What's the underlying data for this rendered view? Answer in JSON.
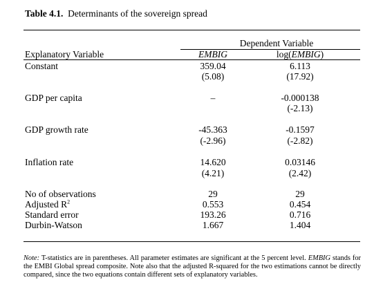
{
  "table": {
    "number_label": "Table 4.1.",
    "caption": "Determinants of the sovereign spread",
    "dependent_header": "Dependent Variable",
    "explanatory_header": "Explanatory Variable",
    "col1_header": "EMBIG",
    "col2_header_prefix": "log(",
    "col2_header_var": "EMBIG",
    "col2_header_suffix": ")",
    "rows": [
      {
        "label": "Constant",
        "c1": "359.04",
        "c1_t": "(5.08)",
        "c2": "6.113",
        "c2_t": "(17.92)"
      },
      {
        "label": "GDP per capita",
        "c1": "–",
        "c1_t": "",
        "c2": "-0.000138",
        "c2_t": "(-2.13)"
      },
      {
        "label": "GDP growth rate",
        "c1": "-45.363",
        "c1_t": "(-2.96)",
        "c2": "-0.1597",
        "c2_t": "(-2.82)"
      },
      {
        "label": "Inflation rate",
        "c1": "14.620",
        "c1_t": "(4.21)",
        "c2": "0.03146",
        "c2_t": "(2.42)"
      }
    ],
    "stats": [
      {
        "label": "No of observations",
        "c1": "29",
        "c2": "29"
      },
      {
        "label": "Adjusted R",
        "sup": "2",
        "c1": "0.553",
        "c2": "0.454"
      },
      {
        "label": "Standard error",
        "c1": "193.26",
        "c2": "0.716"
      },
      {
        "label": "Durbin-Watson",
        "c1": "1.667",
        "c2": "1.404"
      }
    ]
  },
  "note": {
    "prefix": "Note:",
    "text_1": " T-statistics are in parentheses.  All parameter estimates are significant at the 5 percent level. ",
    "emph": "EMBIG",
    "text_2": " stands for the EMBI Global spread composite.  Note also that the adjusted R-squared for the two estimations cannot be directly compared, since the two equations contain different sets of explanatory variables."
  }
}
